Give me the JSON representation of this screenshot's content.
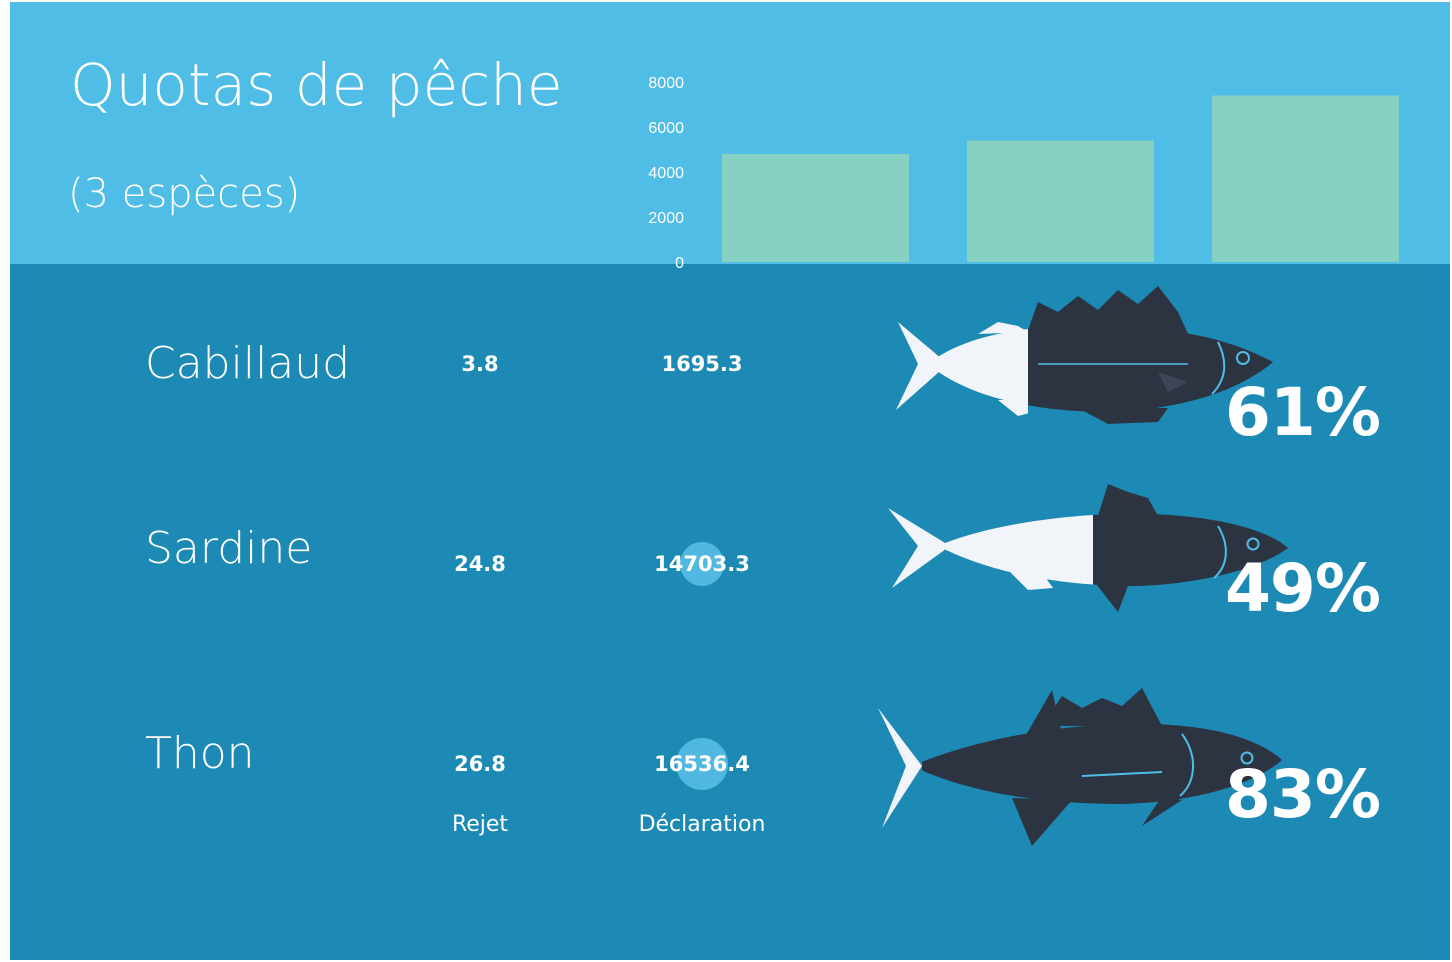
{
  "header": {
    "title": "Quotas de pêche",
    "subtitle": "(3 espèces)"
  },
  "colors": {
    "top_band": "#50bde6",
    "main_bg": "#1c8ab4",
    "bar": "#86d1c2",
    "fish_dark": "#2c3441",
    "fish_light": "#f1f4f8",
    "bubble": "#58bde6"
  },
  "chart_data": {
    "type": "bar",
    "categories": [
      "Cabillaud",
      "Sardine",
      "Thon"
    ],
    "values": [
      4800,
      5400,
      7400
    ],
    "ylim": [
      0,
      8000
    ],
    "yticks": [
      "0",
      "2000",
      "4000",
      "6000",
      "8000"
    ],
    "grid": false,
    "title": "",
    "xlabel": "",
    "ylabel": ""
  },
  "columns": {
    "rejet_label": "Rejet",
    "declaration_label": "Déclaration"
  },
  "species": [
    {
      "name": "Cabillaud",
      "rejet": "3.8",
      "declaration": "1695.3",
      "percent_label": "61%",
      "percent_value": 61,
      "icon": "cod-fish-icon"
    },
    {
      "name": "Sardine",
      "rejet": "24.8",
      "declaration": "14703.3",
      "percent_label": "49%",
      "percent_value": 49,
      "icon": "sardine-fish-icon"
    },
    {
      "name": "Thon",
      "rejet": "26.8",
      "declaration": "16536.4",
      "percent_label": "83%",
      "percent_value": 83,
      "icon": "tuna-fish-icon"
    }
  ]
}
